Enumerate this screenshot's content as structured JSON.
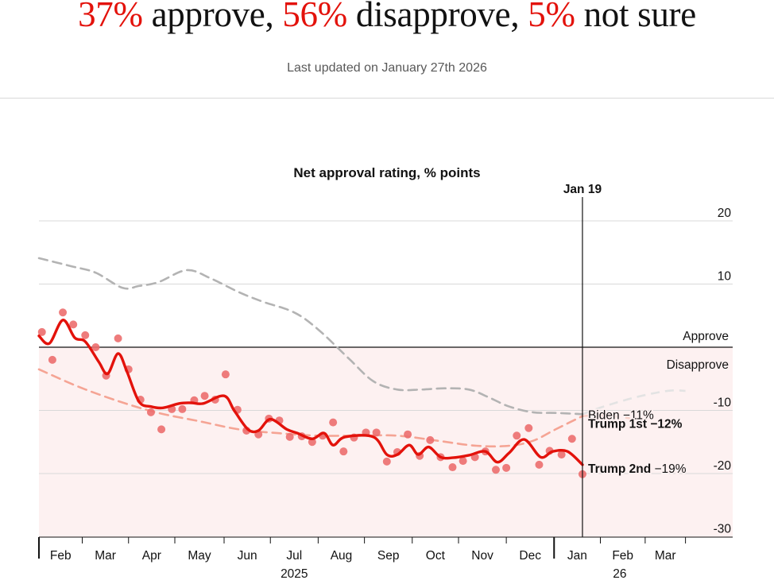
{
  "header": {
    "approve_pct": "37%",
    "approve_text": " approve, ",
    "disapprove_pct": "56%",
    "disapprove_text": " disapprove, ",
    "unsure_pct": "5%",
    "unsure_text": " not sure",
    "last_updated": "Last updated on January 27th 2026"
  },
  "colors": {
    "accent_red": "#e3120b",
    "dots": "#ec6e6e",
    "biden": "#b3b3b3",
    "trump_first": "#f5a494",
    "disapprove_bg": "#fdf1f1",
    "biden_label": "#5c5c5c"
  },
  "chart_data": {
    "type": "line",
    "title": "Net approval rating, % points",
    "xlabel": "",
    "ylabel": "",
    "x_unit": "days since Jan 20 2025",
    "xlim": [
      0,
      465
    ],
    "ylim": [
      -31,
      23
    ],
    "y_ticks": [
      20,
      10,
      -10,
      -20,
      -30
    ],
    "grid": true,
    "zones": {
      "above_zero": "Approve",
      "below_zero": "Disapprove"
    },
    "marker": {
      "label": "Jan 19",
      "x": 364
    },
    "x_ticks": [
      {
        "label": "Feb",
        "x": 0
      },
      {
        "label": "Mar",
        "x": 29
      },
      {
        "label": "Apr",
        "x": 60
      },
      {
        "label": "May",
        "x": 91
      },
      {
        "label": "Jun",
        "x": 124
      },
      {
        "label": "Jul",
        "x": 155
      },
      {
        "label": "Aug",
        "x": 187
      },
      {
        "label": "Sep",
        "x": 218
      },
      {
        "label": "Oct",
        "x": 250
      },
      {
        "label": "Nov",
        "x": 281
      },
      {
        "label": "Dec",
        "x": 313
      },
      {
        "label": "Jan",
        "x": 345
      },
      {
        "label": "Feb",
        "x": 376
      },
      {
        "label": "Mar",
        "x": 406
      }
    ],
    "tick_marks": [
      0,
      29,
      60,
      91,
      124,
      155,
      187,
      218,
      250,
      281,
      313,
      345,
      376,
      406,
      433
    ],
    "year_labels": [
      {
        "label": "2025",
        "x": 171
      },
      {
        "label": "26",
        "x": 389
      }
    ],
    "series": [
      {
        "name": "Biden",
        "end_label": "Biden −11%",
        "style": "dashed-gray",
        "x": [
          0,
          22,
          38,
          56,
          67,
          80,
          99,
          115,
          134,
          150,
          171,
          187,
          208,
          224,
          240,
          256,
          272,
          288,
          301,
          315,
          331,
          346,
          364
        ],
        "y": [
          14.1,
          12.8,
          11.8,
          9.4,
          9.7,
          10.3,
          12.2,
          10.9,
          8.7,
          7.2,
          5.5,
          2.8,
          -1.9,
          -5.4,
          -6.7,
          -6.7,
          -6.5,
          -6.7,
          -7.9,
          -9.4,
          -10.3,
          -10.4,
          -10.6
        ],
        "future_x": [
          364,
          378,
          400,
          421,
          433
        ],
        "future_y": [
          -10.6,
          -9.4,
          -7.9,
          -6.9,
          -6.9
        ]
      },
      {
        "name": "Trump 1st",
        "end_label": "Trump 1st −12%",
        "style": "dashed-salmon",
        "x": [
          0,
          27,
          54,
          80,
          107,
          134,
          160,
          187,
          213,
          240,
          267,
          293,
          315,
          331,
          346,
          364
        ],
        "y": [
          -3.5,
          -6.3,
          -8.6,
          -10.4,
          -11.7,
          -13.0,
          -13.6,
          -14.0,
          -14.0,
          -14.0,
          -14.8,
          -15.6,
          -15.6,
          -14.8,
          -13.0,
          -10.9
        ],
        "future_x": [
          364,
          378,
          400,
          410
        ],
        "future_y": [
          -10.9,
          -10.8,
          -11.4,
          -12.1
        ]
      },
      {
        "name": "Trump 2nd",
        "end_label_name": "Trump 2nd",
        "end_label_value": " −19%",
        "style": "solid-red",
        "x": [
          0,
          7,
          16,
          24,
          31,
          40,
          46,
          53,
          59,
          67,
          75,
          83,
          94,
          102,
          110,
          124,
          131,
          140,
          147,
          155,
          166,
          173,
          183,
          191,
          197,
          205,
          224,
          233,
          240,
          248,
          254,
          261,
          269,
          277,
          288,
          299,
          307,
          315,
          325,
          336,
          344,
          354,
          364
        ],
        "y": [
          1.8,
          0.6,
          4.3,
          1.5,
          0.9,
          -2.3,
          -4.2,
          -1.0,
          -3.9,
          -8.6,
          -9.4,
          -9.6,
          -8.9,
          -8.8,
          -8.9,
          -7.7,
          -10.1,
          -13.0,
          -13.2,
          -11.4,
          -13.0,
          -13.6,
          -14.5,
          -13.6,
          -15.5,
          -14.2,
          -14.2,
          -17.0,
          -17.0,
          -15.5,
          -17.0,
          -15.8,
          -17.4,
          -17.5,
          -17.1,
          -16.5,
          -18.2,
          -16.7,
          -14.6,
          -17.4,
          -16.5,
          -16.5,
          -18.6
        ]
      }
    ],
    "polls": {
      "name": "Trump 2nd individual polls",
      "x": [
        2,
        9,
        16,
        23,
        31,
        38,
        45,
        53,
        60,
        68,
        75,
        82,
        89,
        96,
        104,
        111,
        118,
        125,
        133,
        139,
        147,
        154,
        161,
        168,
        176,
        183,
        190,
        197,
        204,
        211,
        219,
        226,
        233,
        240,
        247,
        255,
        262,
        269,
        277,
        284,
        292,
        299,
        306,
        313,
        320,
        328,
        335,
        342,
        350,
        357,
        364
      ],
      "y": [
        2.4,
        -2.0,
        5.5,
        3.6,
        1.9,
        0.0,
        -4.5,
        1.4,
        -3.5,
        -8.3,
        -10.3,
        -13.0,
        -9.8,
        -9.8,
        -8.4,
        -7.7,
        -8.3,
        -4.3,
        -9.9,
        -13.2,
        -13.8,
        -11.3,
        -11.6,
        -14.2,
        -14.1,
        -15.0,
        -14.0,
        -11.9,
        -16.5,
        -14.3,
        -13.5,
        -13.5,
        -18.1,
        -16.6,
        -13.8,
        -17.2,
        -14.7,
        -17.4,
        -19.0,
        -18.0,
        -17.4,
        -16.5,
        -19.4,
        -19.1,
        -14.0,
        -12.8,
        -18.6,
        -16.4,
        -17.0,
        -14.5,
        -20.1
      ]
    }
  }
}
